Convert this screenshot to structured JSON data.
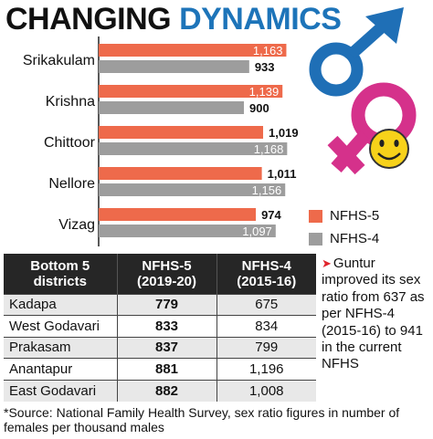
{
  "title": {
    "part1": "CHANGING",
    "part2": "DYNAMICS"
  },
  "chart_data": {
    "type": "bar",
    "orientation": "horizontal",
    "categories": [
      "Srikakulam",
      "Krishna",
      "Chittoor",
      "Nellore",
      "Vizag"
    ],
    "series": [
      {
        "name": "NFHS-5",
        "values": [
          1163,
          1139,
          1019,
          1011,
          974
        ],
        "labels": [
          "1,163",
          "1,139",
          "1,019",
          "1,011",
          "974"
        ],
        "color": "#ee6a4b"
      },
      {
        "name": "NFHS-4",
        "values": [
          933,
          900,
          1168,
          1156,
          1097
        ],
        "labels": [
          "933",
          "900",
          "1,168",
          "1,156",
          "1,097"
        ],
        "color": "#9d9d9d"
      }
    ],
    "xlim": [
      0,
      1200
    ],
    "legend": "bottom-right",
    "grid": false
  },
  "table": {
    "headers": [
      {
        "line1": "Bottom 5",
        "line2": "districts"
      },
      {
        "line1": "NFHS-5",
        "line2": "(2019-20)"
      },
      {
        "line1": "NFHS-4",
        "line2": "(2015-16)"
      }
    ],
    "rows": [
      {
        "district": "Kadapa",
        "nfhs5": "779",
        "nfhs4": "675"
      },
      {
        "district": "West Godavari",
        "nfhs5": "833",
        "nfhs4": "834"
      },
      {
        "district": "Prakasam",
        "nfhs5": "837",
        "nfhs4": "799"
      },
      {
        "district": "Anantapur",
        "nfhs5": "881",
        "nfhs4": "1,196"
      },
      {
        "district": "East Godavari",
        "nfhs5": "882",
        "nfhs4": "1,008"
      }
    ]
  },
  "note": {
    "arrow": "➤",
    "text": "Guntur improved its sex ratio from 637 as per NFHS-4 (2015-16) to 941 in the current NFHS"
  },
  "source": "*Source: National Family Health Survey, sex ratio figures in number of females per thousand males",
  "colors": {
    "title_dark": "#111111",
    "title_blue": "#1d74b9",
    "male_symbol": "#1f6fb6",
    "female_symbol": "#d5318b",
    "smiley": "#f7d21a"
  },
  "icons": [
    "male-symbol-icon",
    "female-symbol-icon",
    "smiley-icon"
  ]
}
